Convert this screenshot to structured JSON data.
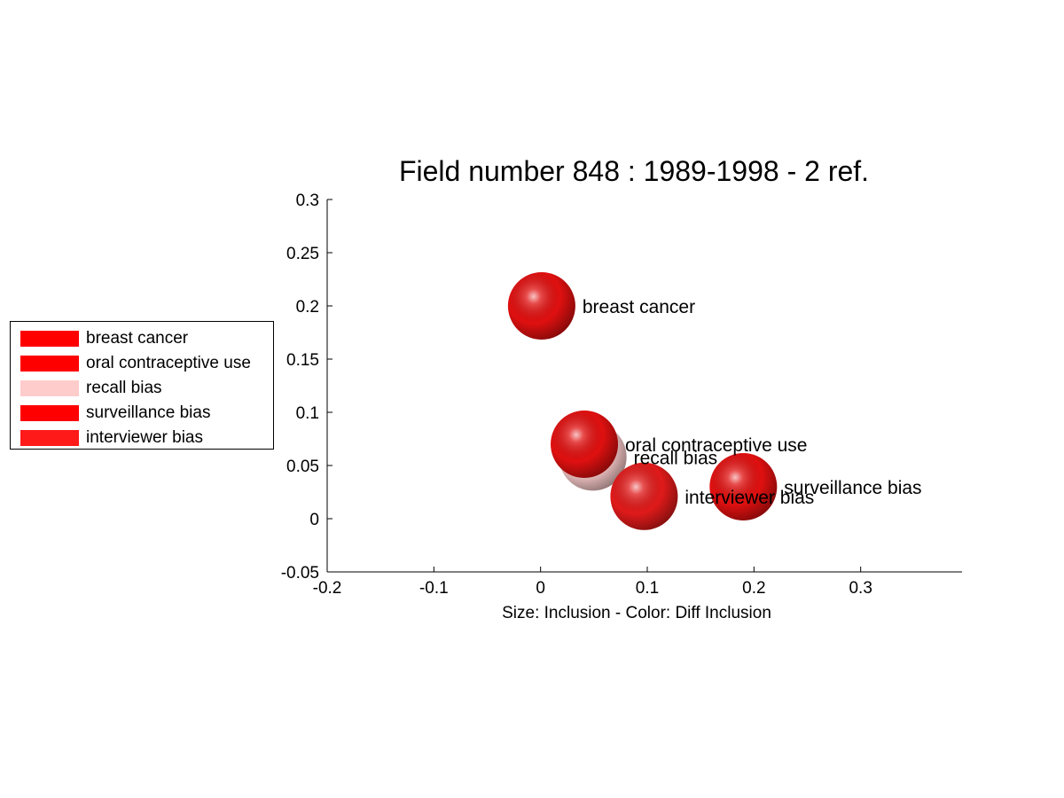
{
  "chart_data": {
    "type": "scatter",
    "title": "Field number 848 : 1989-1998  - 2 ref.",
    "xlabel": "Size: Inclusion - Color: Diff Inclusion",
    "ylabel": "",
    "xlim": [
      -0.2,
      0.395
    ],
    "ylim": [
      -0.05,
      0.3
    ],
    "xticks": [
      -0.2,
      -0.1,
      0,
      0.1,
      0.2,
      0.3
    ],
    "yticks": [
      -0.05,
      0,
      0.05,
      0.1,
      0.15,
      0.2,
      0.25,
      0.3
    ],
    "xtick_labels": [
      "-0.2",
      "-0.1",
      "0",
      "0.1",
      "0.2",
      "0.3"
    ],
    "ytick_labels": [
      "-0.05",
      "0",
      "0.05",
      "0.1",
      "0.15",
      "0.2",
      "0.25",
      "0.3"
    ],
    "grid": false,
    "legend_position": "left",
    "points": [
      {
        "name": "recall bias",
        "x": 0.049,
        "y": 0.058,
        "color": "#f2c4c4"
      },
      {
        "name": "breast cancer",
        "x": 0.001,
        "y": 0.2,
        "color": "#e01010"
      },
      {
        "name": "oral contraceptive use",
        "x": 0.041,
        "y": 0.07,
        "color": "#e01010"
      },
      {
        "name": "interviewer bias",
        "x": 0.097,
        "y": 0.021,
        "color": "#e01a1a"
      },
      {
        "name": "surveillance bias",
        "x": 0.19,
        "y": 0.03,
        "color": "#e01010"
      }
    ],
    "legend": [
      {
        "label": "breast cancer",
        "color": "#ff0000"
      },
      {
        "label": "oral contraceptive use",
        "color": "#ff0000"
      },
      {
        "label": "recall bias",
        "color": "#ffcccc"
      },
      {
        "label": "surveillance bias",
        "color": "#ff0000"
      },
      {
        "label": "interviewer bias",
        "color": "#ff1a1a"
      }
    ]
  }
}
